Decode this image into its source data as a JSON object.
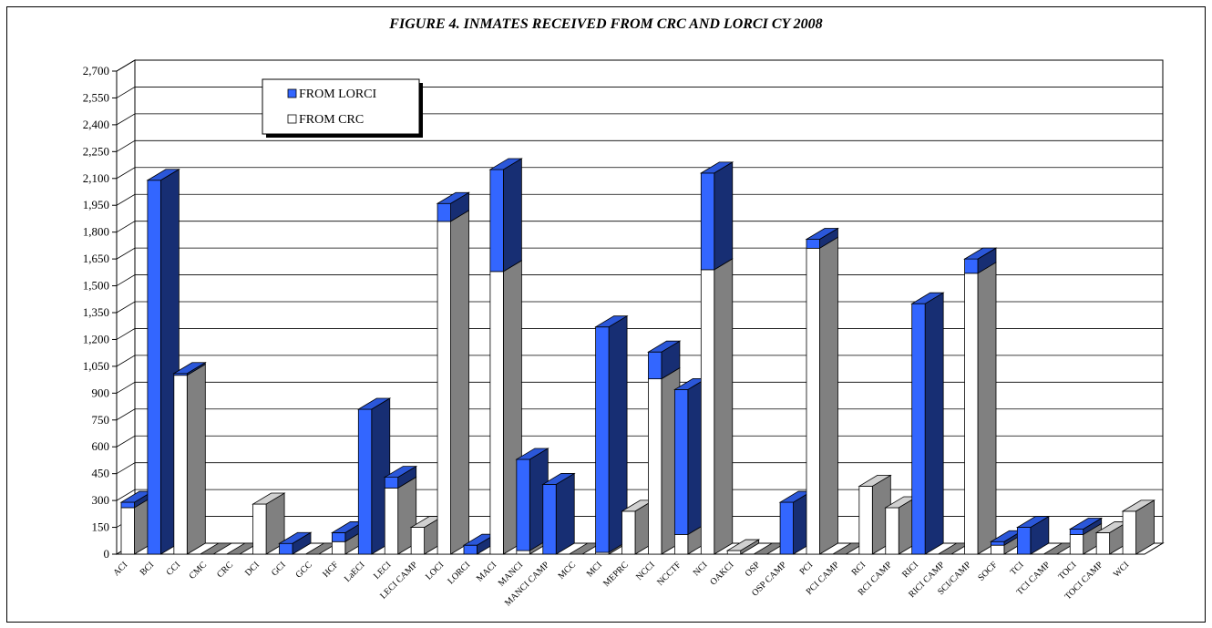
{
  "chart_data": {
    "type": "bar",
    "title": "FIGURE 4. INMATES RECEIVED FROM CRC AND LORCI CY 2008",
    "stacked": true,
    "three_d": true,
    "ylim": [
      0,
      2700
    ],
    "yticks": [
      "0",
      "150",
      "300",
      "450",
      "600",
      "750",
      "900",
      "1,050",
      "1,200",
      "1,350",
      "1,500",
      "1,650",
      "1,800",
      "1,950",
      "2,100",
      "2,250",
      "2,400",
      "2,550",
      "2,700"
    ],
    "ytick_values": [
      0,
      150,
      300,
      450,
      600,
      750,
      900,
      1050,
      1200,
      1350,
      1500,
      1650,
      1800,
      1950,
      2100,
      2250,
      2400,
      2550,
      2700
    ],
    "grid": true,
    "legend_position": "top-left",
    "categories": [
      "ACI",
      "BCI",
      "CCI",
      "CMC",
      "CRC",
      "DCI",
      "GCI",
      "GCC",
      "HCF",
      "LaECI",
      "LECI",
      "LECI CAMP",
      "LOCI",
      "LORCI",
      "MACI",
      "MANCI",
      "MANCI CAMP",
      "MCC",
      "MCI",
      "MEPRC",
      "NCCI",
      "NCCTF",
      "NCI",
      "OAKCI",
      "OSP",
      "OSP CAMP",
      "PCI",
      "PCI CAMP",
      "RCI",
      "RCI CAMP",
      "RICI",
      "RICI CAMP",
      "SCI/CAMP",
      "SOCF",
      "TCI",
      "TCI CAMP",
      "TOCI",
      "TOCI CAMP",
      "WCI"
    ],
    "series": [
      {
        "name": "FROM CRC",
        "color": "#ffffff",
        "values": [
          260,
          0,
          1000,
          0,
          0,
          280,
          0,
          0,
          70,
          0,
          370,
          150,
          1860,
          0,
          1580,
          20,
          0,
          0,
          10,
          240,
          980,
          110,
          1590,
          20,
          0,
          0,
          1710,
          0,
          380,
          260,
          0,
          0,
          1570,
          50,
          0,
          0,
          110,
          120,
          240
        ]
      },
      {
        "name": "FROM LORCI",
        "color": "#3366ff",
        "values": [
          30,
          2090,
          10,
          0,
          0,
          0,
          60,
          0,
          50,
          810,
          60,
          0,
          100,
          50,
          570,
          510,
          390,
          0,
          1260,
          0,
          150,
          810,
          540,
          0,
          0,
          290,
          50,
          0,
          0,
          0,
          1400,
          0,
          80,
          20,
          150,
          0,
          30,
          0,
          0
        ]
      }
    ]
  }
}
